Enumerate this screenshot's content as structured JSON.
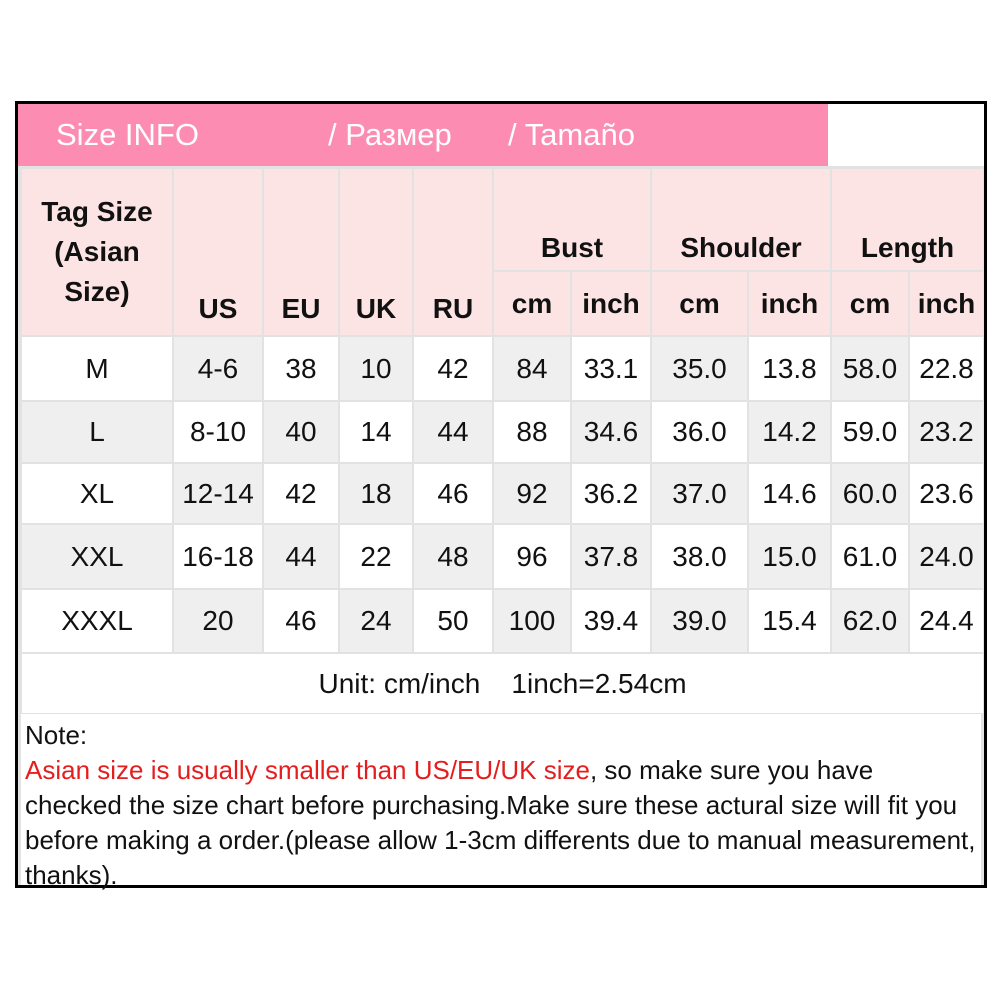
{
  "header": {
    "title": [
      "Size INFO",
      "/ Размер",
      "/ Tamaño"
    ]
  },
  "table": {
    "columns": [
      "Tag Size (Asian Size)",
      "US",
      "EU",
      "UK",
      "RU"
    ],
    "groups": [
      {
        "name": "Bust",
        "units": [
          "cm",
          "inch"
        ]
      },
      {
        "name": "Shoulder",
        "units": [
          "cm",
          "inch"
        ]
      },
      {
        "name": "Length",
        "units": [
          "cm",
          "inch"
        ]
      }
    ],
    "rows": [
      [
        "M",
        "4-6",
        "38",
        "10",
        "42",
        "84",
        "33.1",
        "35.0",
        "13.8",
        "58.0",
        "22.8"
      ],
      [
        "L",
        "8-10",
        "40",
        "14",
        "44",
        "88",
        "34.6",
        "36.0",
        "14.2",
        "59.0",
        "23.2"
      ],
      [
        "XL",
        "12-14",
        "42",
        "18",
        "46",
        "92",
        "36.2",
        "37.0",
        "14.6",
        "60.0",
        "23.6"
      ],
      [
        "XXL",
        "16-18",
        "44",
        "22",
        "48",
        "96",
        "37.8",
        "38.0",
        "15.0",
        "61.0",
        "24.0"
      ],
      [
        "XXXL",
        "20",
        "46",
        "24",
        "50",
        "100",
        "39.4",
        "39.0",
        "15.4",
        "62.0",
        "24.4"
      ]
    ],
    "unit_note": "Unit: cm/inch    1inch=2.54cm"
  },
  "note": {
    "label": "Note:",
    "warning": "Asian size is usually smaller than US/EU/UK size",
    "text": ", so make sure you have checked the size chart before purchasing.Make sure these actural size will fit you before making a order.(please allow 1-3cm differents due to manual measurement, thanks)."
  }
}
